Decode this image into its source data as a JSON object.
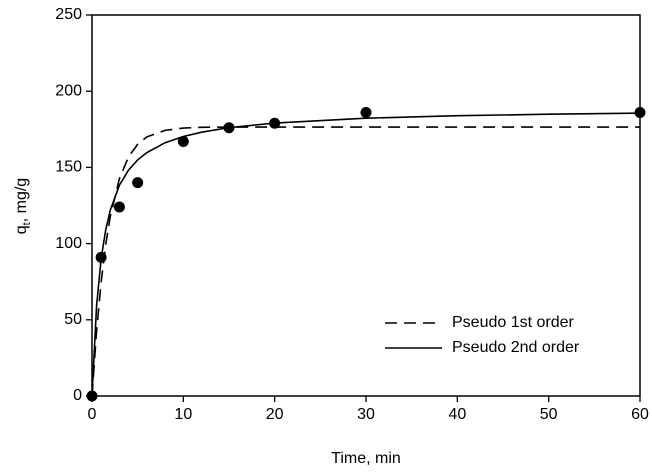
{
  "chart_data": {
    "type": "scatter",
    "xlabel": "Time, min",
    "ylabel": [
      "q",
      "t",
      ", mg/g"
    ],
    "xlim": [
      0,
      60
    ],
    "xticks": [
      0,
      10,
      20,
      30,
      40,
      50,
      60
    ],
    "ylim": [
      0,
      250
    ],
    "yticks": [
      0,
      50,
      100,
      150,
      200,
      250
    ],
    "legend": "lower right",
    "series": [
      {
        "marker": "circle",
        "color": "#000000",
        "x": [
          0,
          1,
          3,
          5,
          10,
          15,
          20,
          30,
          60
        ],
        "values": [
          0,
          91,
          124,
          140,
          167,
          176,
          179,
          186,
          186
        ]
      },
      {
        "name": "Pseudo 1st order",
        "line": "dashed",
        "color": "#000000",
        "x": [
          0,
          0.5,
          1,
          1.5,
          2,
          3,
          4,
          5,
          6,
          8,
          10,
          12,
          15,
          20,
          30,
          40,
          50,
          60
        ],
        "values": [
          0,
          42.4,
          74.7,
          99.2,
          117.7,
          142.6,
          156.9,
          165.2,
          170.0,
          174.3,
          175.8,
          176.3,
          176.5,
          176.5,
          176.5,
          176.5,
          176.5,
          176.5
        ]
      },
      {
        "name": "Pseudo 2nd order",
        "line": "solid",
        "color": "#000000",
        "x": [
          0,
          0.5,
          1,
          1.5,
          2,
          3,
          4,
          5,
          6,
          8,
          10,
          12,
          15,
          20,
          30,
          40,
          50,
          60
        ],
        "values": [
          0,
          59.1,
          90.0,
          109.0,
          121.9,
          138.3,
          148.2,
          154.9,
          159.7,
          166.2,
          170.3,
          173.1,
          176.1,
          179.1,
          182.3,
          183.9,
          184.9,
          185.6
        ]
      }
    ]
  }
}
